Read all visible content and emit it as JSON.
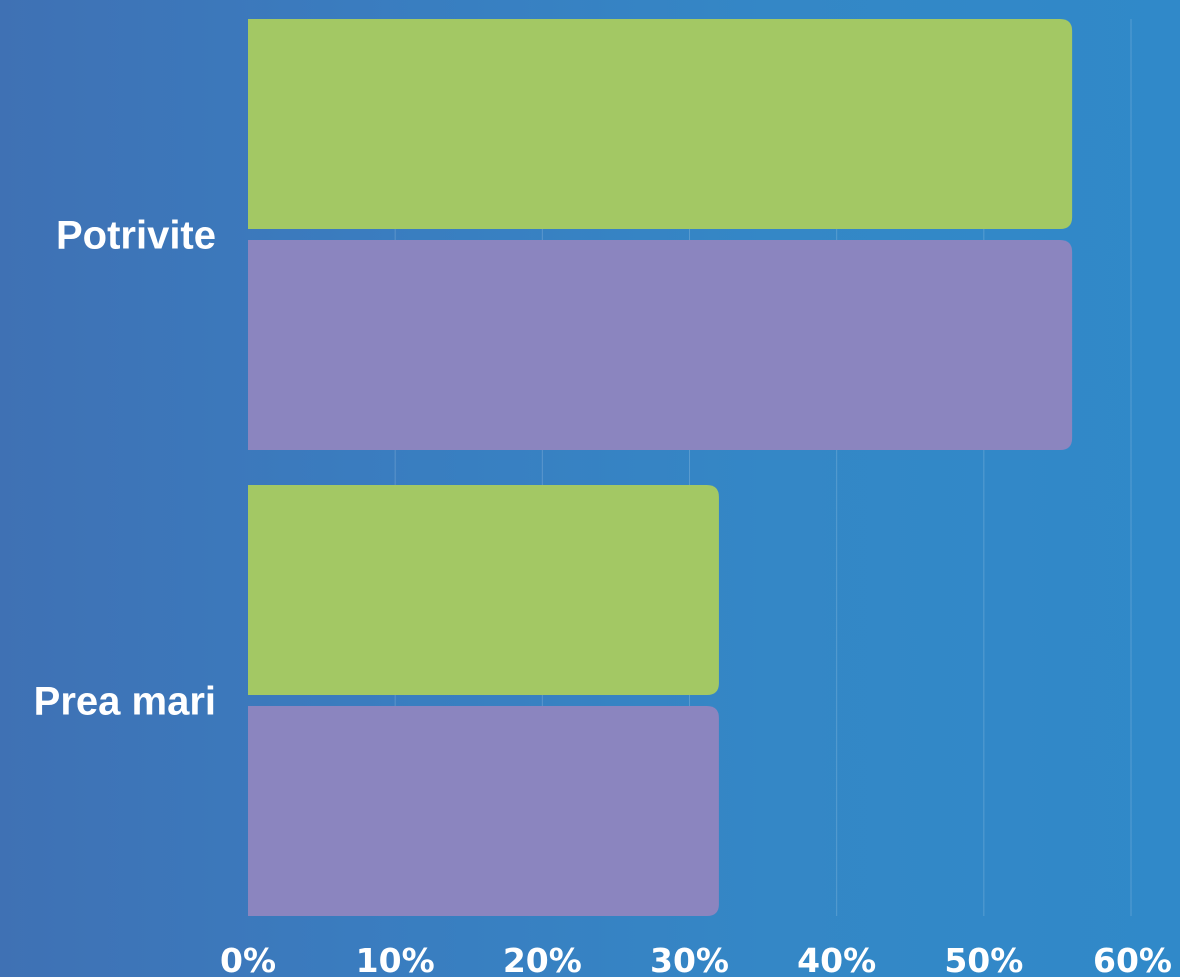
{
  "chart_data": {
    "type": "bar",
    "orientation": "horizontal",
    "categories": [
      "Potrivite",
      "Prea mari"
    ],
    "series": [
      {
        "color": "#a3c864",
        "values": [
          56,
          32
        ]
      },
      {
        "color": "#8b85bf",
        "values": [
          56,
          32
        ]
      }
    ],
    "xlim": [
      0,
      60
    ],
    "x_ticks": [
      0,
      10,
      20,
      30,
      40,
      50,
      60
    ],
    "x_tick_labels": [
      "0%",
      "10%",
      "20%",
      "30%",
      "40%",
      "50%",
      "60%"
    ],
    "grid": true,
    "legend": "none"
  }
}
